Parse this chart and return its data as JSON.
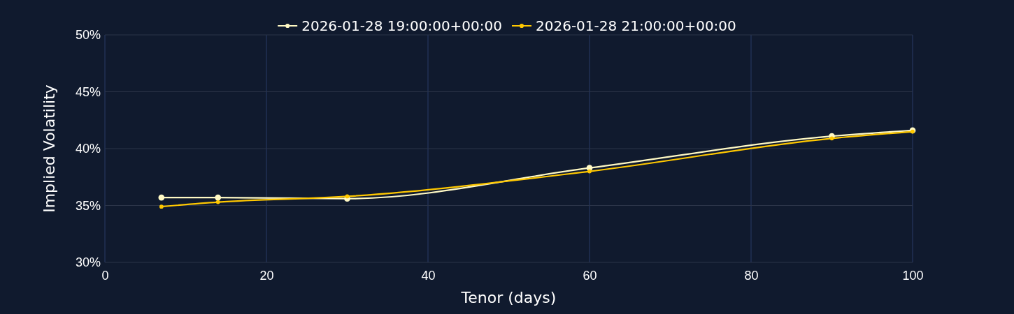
{
  "chart_data": {
    "type": "line",
    "xlabel": "Tenor (days)",
    "ylabel": "Implied Volatility",
    "xlim": [
      0,
      100
    ],
    "xticks": [
      0,
      20,
      40,
      60,
      80,
      100
    ],
    "ylim": [
      30,
      50
    ],
    "yticks": [
      {
        "value": 30,
        "label": "30%"
      },
      {
        "value": 35,
        "label": "35%"
      },
      {
        "value": 40,
        "label": "40%"
      },
      {
        "value": 45,
        "label": "45%"
      },
      {
        "value": 50,
        "label": "50%"
      }
    ],
    "x": [
      7,
      14,
      30,
      60,
      90,
      100
    ],
    "series": [
      {
        "name": "2026-01-28 19:00:00+00:00",
        "color": "#fff9c4",
        "values": [
          35.7,
          35.7,
          35.6,
          38.3,
          41.1,
          41.6
        ]
      },
      {
        "name": "2026-01-28 21:00:00+00:00",
        "color": "#ffc800",
        "values": [
          34.9,
          35.3,
          35.8,
          38.0,
          40.9,
          41.5
        ]
      }
    ],
    "grid": true,
    "legend": "top",
    "marker": "circle",
    "line_style": "solid"
  }
}
